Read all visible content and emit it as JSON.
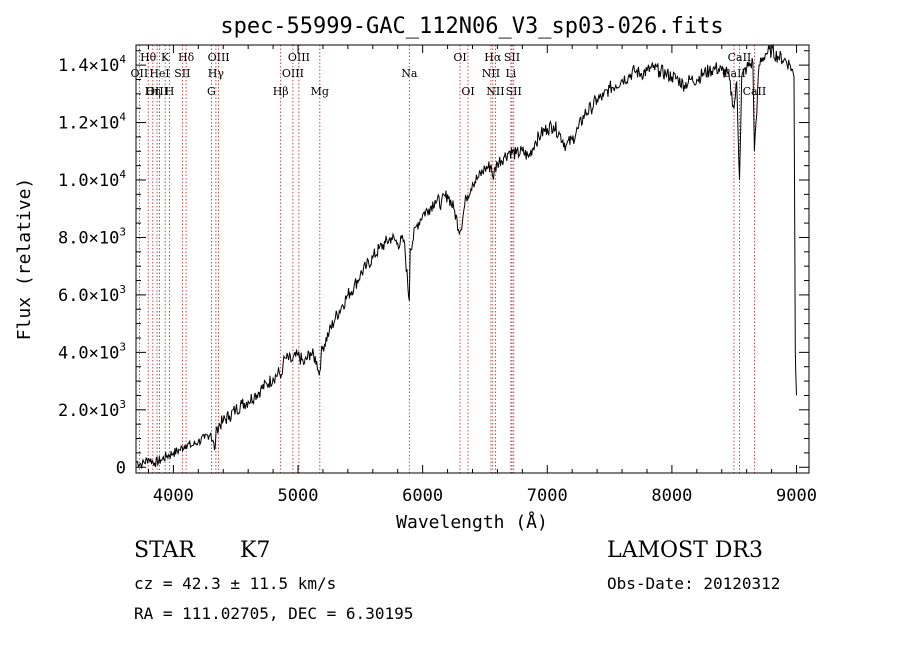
{
  "chart_data": {
    "type": "line",
    "title": "spec-55999-GAC_112N06_V3_sp03-026.fits",
    "xlabel": "Wavelength (Å)",
    "ylabel": "Flux (relative)",
    "xlim": [
      3700,
      9100
    ],
    "ylim": [
      -200,
      14700
    ],
    "xticks": [
      {
        "value": 4000,
        "label": "4000"
      },
      {
        "value": 5000,
        "label": "5000"
      },
      {
        "value": 6000,
        "label": "6000"
      },
      {
        "value": 7000,
        "label": "7000"
      },
      {
        "value": 8000,
        "label": "8000"
      },
      {
        "value": 9000,
        "label": "9000"
      }
    ],
    "yticks": [
      {
        "value": 0,
        "mant": "0",
        "exp": ""
      },
      {
        "value": 2000,
        "mant": "2.0×10",
        "exp": "3"
      },
      {
        "value": 4000,
        "mant": "4.0×10",
        "exp": "3"
      },
      {
        "value": 6000,
        "mant": "6.0×10",
        "exp": "3"
      },
      {
        "value": 8000,
        "mant": "8.0×10",
        "exp": "3"
      },
      {
        "value": 10000,
        "mant": "1.0×10",
        "exp": "4"
      },
      {
        "value": 12000,
        "mant": "1.2×10",
        "exp": "4"
      },
      {
        "value": 14000,
        "mant": "1.4×10",
        "exp": "4"
      }
    ],
    "series": [
      {
        "name": "flux",
        "x": [
          3700,
          3750,
          3800,
          3850,
          3900,
          3950,
          4000,
          4050,
          4100,
          4150,
          4200,
          4250,
          4300,
          4330,
          4350,
          4400,
          4450,
          4500,
          4550,
          4600,
          4650,
          4700,
          4750,
          4800,
          4850,
          4861,
          4880,
          4900,
          4950,
          5000,
          5050,
          5100,
          5150,
          5170,
          5185,
          5200,
          5250,
          5300,
          5350,
          5400,
          5450,
          5500,
          5550,
          5600,
          5650,
          5700,
          5750,
          5800,
          5850,
          5893,
          5900,
          5950,
          6000,
          6050,
          6100,
          6150,
          6200,
          6250,
          6300,
          6350,
          6400,
          6450,
          6500,
          6550,
          6563,
          6600,
          6650,
          6700,
          6750,
          6800,
          6850,
          6900,
          6950,
          7000,
          7050,
          7100,
          7150,
          7200,
          7250,
          7300,
          7350,
          7400,
          7450,
          7500,
          7550,
          7600,
          7650,
          7700,
          7750,
          7800,
          7850,
          7900,
          7950,
          8000,
          8050,
          8100,
          8150,
          8200,
          8250,
          8300,
          8350,
          8400,
          8450,
          8498,
          8520,
          8542,
          8560,
          8600,
          8650,
          8662,
          8700,
          8750,
          8800,
          8850,
          8900,
          8950,
          8980,
          8990,
          9000
        ],
        "y": [
          200,
          100,
          300,
          150,
          250,
          400,
          500,
          600,
          800,
          750,
          900,
          1000,
          1200,
          600,
          1400,
          1600,
          1800,
          2000,
          2200,
          2300,
          2500,
          2700,
          2900,
          3100,
          3300,
          3100,
          3600,
          3800,
          3700,
          3900,
          3600,
          4000,
          3700,
          3200,
          3900,
          4200,
          4700,
          5200,
          5600,
          6000,
          6300,
          6700,
          7000,
          7300,
          7600,
          7800,
          8000,
          7800,
          7900,
          5800,
          7600,
          8400,
          8800,
          9000,
          9300,
          9200,
          9500,
          9000,
          8200,
          9400,
          9900,
          10100,
          10400,
          10500,
          10100,
          10600,
          10800,
          11000,
          10900,
          11000,
          10800,
          11300,
          11600,
          11800,
          11900,
          11600,
          11200,
          11400,
          11800,
          12300,
          12500,
          12800,
          12900,
          13200,
          13300,
          13500,
          13600,
          13800,
          13700,
          13800,
          13900,
          13800,
          13700,
          13600,
          13500,
          13300,
          13500,
          13500,
          13700,
          13800,
          13900,
          13800,
          13700,
          12500,
          13400,
          10000,
          13600,
          13900,
          14100,
          11000,
          14000,
          14400,
          14500,
          14300,
          14200,
          14000,
          13600,
          4000,
          2500
        ]
      }
    ],
    "lines": [
      {
        "name": "CaII K/H, Hbeta group",
        "label": "Hθ",
        "x": 3798,
        "row": 1
      },
      {
        "name": "OII",
        "label": "OII",
        "x": 3727,
        "row": 2
      },
      {
        "name": "OIII-blue",
        "label": "OIII",
        "x": 3869,
        "row": 3
      },
      {
        "name": "Heta",
        "label": "Hη",
        "x": 3835,
        "row": 3
      },
      {
        "name": "K",
        "label": "K",
        "x": 3934,
        "row": 1
      },
      {
        "name": "H",
        "label": "H",
        "x": 3969,
        "row": 3
      },
      {
        "name": "HeI",
        "label": "HeI",
        "x": 3889,
        "row": 2
      },
      {
        "name": "SII-blue",
        "label": "SII",
        "x": 4072,
        "row": 2
      },
      {
        "name": "Hdelta",
        "label": "Hδ",
        "x": 4102,
        "row": 1
      },
      {
        "name": "G",
        "label": "G",
        "x": 4305,
        "row": 3
      },
      {
        "name": "Hgamma",
        "label": "Hγ",
        "x": 4341,
        "row": 2
      },
      {
        "name": "OIII-4363",
        "label": "OIII",
        "x": 4363,
        "row": 1
      },
      {
        "name": "Hbeta",
        "label": "Hβ",
        "x": 4861,
        "row": 3
      },
      {
        "name": "OIII-4959",
        "label": "OIII",
        "x": 4959,
        "row": 2
      },
      {
        "name": "OIII-5007",
        "label": "OIII",
        "x": 5007,
        "row": 1
      },
      {
        "name": "Mg",
        "label": "Mg",
        "x": 5175,
        "row": 3
      },
      {
        "name": "Na",
        "label": "Na",
        "x": 5893,
        "row": 2
      },
      {
        "name": "OI-6300",
        "label": "OI",
        "x": 6300,
        "row": 1
      },
      {
        "name": "OI-6364",
        "label": "OI",
        "x": 6364,
        "row": 3
      },
      {
        "name": "Halpha",
        "label": "Hα",
        "x": 6563,
        "row": 1
      },
      {
        "name": "NII-6548",
        "label": "NII",
        "x": 6548,
        "row": 2
      },
      {
        "name": "NII-6584",
        "label": "NII",
        "x": 6584,
        "row": 3
      },
      {
        "name": "Li",
        "label": "Li",
        "x": 6708,
        "row": 2
      },
      {
        "name": "SII-6717",
        "label": "SII",
        "x": 6717,
        "row": 1
      },
      {
        "name": "SII-6731",
        "label": "SII",
        "x": 6731,
        "row": 3
      },
      {
        "name": "CaII-8498",
        "label": "CaII",
        "x": 8498,
        "row": 2
      },
      {
        "name": "CaII-8542",
        "label": "CaII",
        "x": 8542,
        "row": 1
      },
      {
        "name": "CaII-8662",
        "label": "CaII",
        "x": 8662,
        "row": 3
      }
    ]
  },
  "info": {
    "class": "STAR",
    "subclass": "K7",
    "survey": "LAMOST DR3",
    "cz": "cz = 42.3 ± 11.5 km/s",
    "obsdate": "Obs-Date: 20120312",
    "radec": "RA = 111.02705, DEC =   6.30195"
  },
  "colors": {
    "line_marker": "#b22222",
    "axis": "#000000",
    "background": "#ffffff"
  }
}
